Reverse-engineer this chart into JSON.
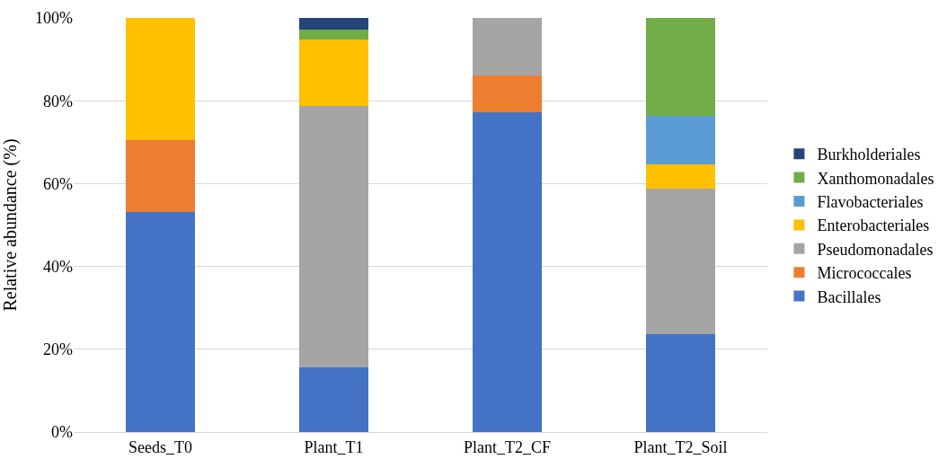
{
  "chart_data": {
    "type": "bar",
    "stacked": true,
    "ylabel": "Relative abundance (%)",
    "categories": [
      "Seeds_T0",
      "Plant_T1",
      "Plant_T2_CF",
      "Plant_T2_Soil"
    ],
    "series": [
      {
        "name": "Bacillales",
        "color": "#4472c4",
        "values": [
          53.1,
          15.7,
          77.3,
          23.6
        ]
      },
      {
        "name": "Micrococcales",
        "color": "#ed7d31",
        "values": [
          17.4,
          0,
          8.9,
          0
        ]
      },
      {
        "name": "Pseudomonadales",
        "color": "#a5a5a5",
        "values": [
          0,
          63.1,
          13.8,
          35.1
        ]
      },
      {
        "name": "Enterobacteriales",
        "color": "#ffc000",
        "values": [
          29.5,
          16.0,
          0,
          5.9
        ]
      },
      {
        "name": "Flavobacteriales",
        "color": "#5b9bd5",
        "values": [
          0,
          0,
          0,
          11.8
        ]
      },
      {
        "name": "Xanthomonadales",
        "color": "#70ad47",
        "values": [
          0,
          2.4,
          0,
          23.6
        ]
      },
      {
        "name": "Burkholderiales",
        "color": "#264478",
        "values": [
          0,
          2.8,
          0,
          0
        ]
      }
    ],
    "ylim": [
      0,
      100
    ],
    "yticks": [
      {
        "value": 0,
        "label": "0%"
      },
      {
        "value": 20,
        "label": "20%"
      },
      {
        "value": 40,
        "label": "40%"
      },
      {
        "value": 60,
        "label": "60%"
      },
      {
        "value": 80,
        "label": "80%"
      },
      {
        "value": 100,
        "label": "100%"
      }
    ],
    "grid": "y",
    "legend": "right"
  }
}
